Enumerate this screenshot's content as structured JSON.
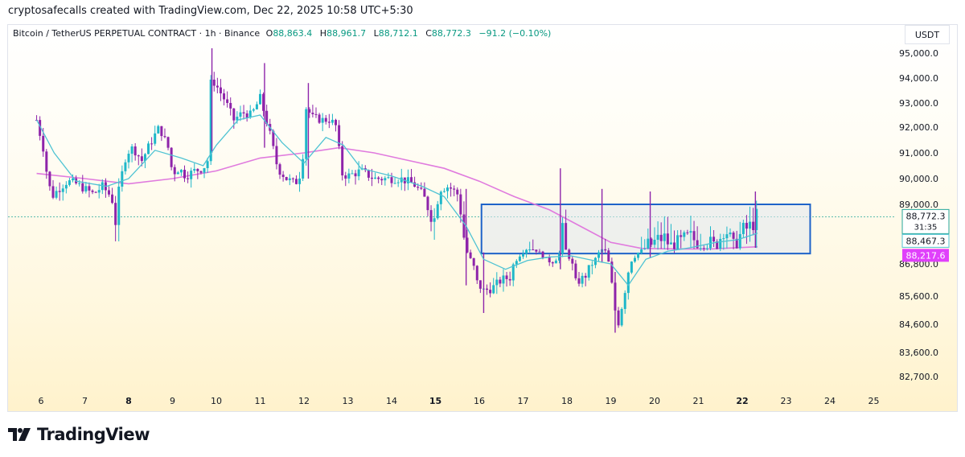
{
  "attribution": "cryptosafecalls created with TradingView.com, Dec 22, 2025 10:58 UTC+5:30",
  "symbol": {
    "name": "Bitcoin / TetherUS PERPETUAL CONTRACT · 1h · Binance",
    "open_label": "O",
    "open": "88,863.4",
    "high_label": "H",
    "high": "88,961.7",
    "low_label": "L",
    "low": "88,712.1",
    "close_label": "C",
    "close": "88,772.3",
    "change": "−91.2 (−0.10%)"
  },
  "currency": "USDT",
  "brand": "TradingView",
  "colors": {
    "up": "#1fb7c9",
    "down": "#8e24aa",
    "ema_short": "#4fc3d3",
    "ema_long": "#e07bde",
    "box_border": "#1e63c9",
    "price_tag": "#26a69a",
    "ema_tag": "#e040fb"
  },
  "price_tags": {
    "last": "88,772.3",
    "countdown": "31:35",
    "ema_short": "88,467.3",
    "ema_long": "88,217.6"
  },
  "chart_data": {
    "type": "candlestick",
    "y_axis_labels": [
      "95,000.0",
      "94,000.0",
      "93,000.0",
      "92,000.0",
      "91,000.0",
      "90,000.0",
      "89,000.0",
      "86,800.0",
      "85,600.0",
      "84,600.0",
      "83,600.0",
      "82,700.0"
    ],
    "x_axis_labels": [
      "6",
      "7",
      "8",
      "9",
      "10",
      "11",
      "12",
      "13",
      "14",
      "15",
      "16",
      "17",
      "18",
      "19",
      "20",
      "21",
      "22",
      "23",
      "24",
      "25"
    ],
    "bold_x_labels": [
      "8",
      "15",
      "22"
    ],
    "ylim": [
      82200,
      95600
    ],
    "close_path": [
      [
        5.9,
        92.3
      ],
      [
        6.05,
        91.2
      ],
      [
        6.15,
        90.0
      ],
      [
        6.25,
        89.3
      ],
      [
        6.4,
        89.6
      ],
      [
        6.6,
        89.9
      ],
      [
        6.8,
        89.8
      ],
      [
        7.0,
        89.6
      ],
      [
        7.2,
        89.4
      ],
      [
        7.4,
        89.7
      ],
      [
        7.6,
        89.3
      ],
      [
        7.7,
        88.7
      ],
      [
        7.8,
        89.8
      ],
      [
        7.95,
        91.0
      ],
      [
        8.1,
        91.2
      ],
      [
        8.3,
        90.7
      ],
      [
        8.5,
        91.4
      ],
      [
        8.7,
        92.0
      ],
      [
        8.9,
        91.2
      ],
      [
        9.0,
        90.2
      ],
      [
        9.15,
        90.4
      ],
      [
        9.3,
        90.1
      ],
      [
        9.5,
        90.3
      ],
      [
        9.7,
        90.4
      ],
      [
        9.8,
        90.7
      ],
      [
        9.88,
        94.0
      ],
      [
        10.0,
        93.7
      ],
      [
        10.2,
        93.1
      ],
      [
        10.4,
        92.3
      ],
      [
        10.6,
        92.6
      ],
      [
        10.8,
        92.5
      ],
      [
        11.0,
        93.2
      ],
      [
        11.2,
        91.9
      ],
      [
        11.4,
        90.4
      ],
      [
        11.6,
        90.0
      ],
      [
        11.8,
        89.8
      ],
      [
        11.95,
        90.3
      ],
      [
        12.05,
        92.8
      ],
      [
        12.2,
        92.4
      ],
      [
        12.4,
        92.3
      ],
      [
        12.6,
        92.3
      ],
      [
        12.75,
        92.0
      ],
      [
        12.85,
        90.2
      ],
      [
        13.0,
        90.1
      ],
      [
        13.3,
        90.3
      ],
      [
        13.6,
        90.0
      ],
      [
        13.9,
        90.0
      ],
      [
        14.2,
        90.0
      ],
      [
        14.5,
        89.8
      ],
      [
        14.7,
        89.4
      ],
      [
        14.85,
        88.9
      ],
      [
        15.0,
        88.7
      ],
      [
        15.1,
        89.6
      ],
      [
        15.3,
        89.7
      ],
      [
        15.5,
        89.4
      ],
      [
        15.65,
        88.4
      ],
      [
        15.8,
        87.2
      ],
      [
        15.95,
        86.1
      ],
      [
        16.1,
        85.8
      ],
      [
        16.3,
        85.9
      ],
      [
        16.5,
        86.2
      ],
      [
        16.7,
        86.3
      ],
      [
        16.9,
        87.5
      ],
      [
        17.1,
        88.2
      ],
      [
        17.3,
        88.0
      ],
      [
        17.5,
        87.3
      ],
      [
        17.65,
        86.9
      ],
      [
        17.8,
        87.4
      ],
      [
        17.9,
        88.5
      ],
      [
        18.0,
        87.8
      ],
      [
        18.2,
        86.1
      ],
      [
        18.4,
        86.3
      ],
      [
        18.6,
        86.9
      ],
      [
        18.75,
        87.9
      ],
      [
        18.85,
        88.2
      ],
      [
        19.0,
        86.3
      ],
      [
        19.15,
        84.5
      ],
      [
        19.3,
        85.6
      ],
      [
        19.45,
        87.0
      ],
      [
        19.6,
        87.7
      ],
      [
        19.8,
        88.2
      ],
      [
        20.0,
        88.3
      ],
      [
        20.2,
        88.4
      ],
      [
        20.4,
        88.2
      ],
      [
        20.6,
        88.3
      ],
      [
        20.8,
        88.4
      ],
      [
        21.0,
        88.3
      ],
      [
        21.2,
        88.3
      ],
      [
        21.4,
        88.2
      ],
      [
        21.6,
        88.6
      ],
      [
        21.8,
        88.2
      ],
      [
        22.0,
        88.5
      ],
      [
        22.2,
        88.6
      ],
      [
        22.35,
        88.8
      ]
    ],
    "ema_short": [
      [
        5.9,
        92.3
      ],
      [
        6.3,
        91.0
      ],
      [
        6.8,
        89.9
      ],
      [
        7.5,
        89.7
      ],
      [
        8.0,
        90.0
      ],
      [
        8.6,
        91.1
      ],
      [
        9.2,
        90.8
      ],
      [
        9.7,
        90.5
      ],
      [
        10.0,
        91.3
      ],
      [
        10.5,
        92.3
      ],
      [
        11.0,
        92.5
      ],
      [
        11.5,
        91.4
      ],
      [
        12.0,
        90.6
      ],
      [
        12.5,
        91.6
      ],
      [
        12.9,
        91.3
      ],
      [
        13.3,
        90.4
      ],
      [
        14.0,
        90.1
      ],
      [
        14.7,
        89.7
      ],
      [
        15.2,
        89.3
      ],
      [
        15.7,
        88.6
      ],
      [
        16.1,
        87.2
      ],
      [
        16.6,
        86.6
      ],
      [
        17.1,
        87.1
      ],
      [
        17.6,
        87.4
      ],
      [
        18.1,
        87.5
      ],
      [
        18.6,
        87.1
      ],
      [
        19.0,
        86.8
      ],
      [
        19.4,
        86.0
      ],
      [
        19.8,
        87.2
      ],
      [
        20.3,
        87.9
      ],
      [
        20.8,
        88.2
      ],
      [
        21.4,
        88.3
      ],
      [
        21.9,
        88.35
      ],
      [
        22.35,
        88.47
      ]
    ],
    "ema_long": [
      [
        5.9,
        90.2
      ],
      [
        7.0,
        90.0
      ],
      [
        8.0,
        89.8
      ],
      [
        9.0,
        90.0
      ],
      [
        10.0,
        90.3
      ],
      [
        11.0,
        90.8
      ],
      [
        12.0,
        91.0
      ],
      [
        12.8,
        91.2
      ],
      [
        13.6,
        91.0
      ],
      [
        14.4,
        90.7
      ],
      [
        15.2,
        90.4
      ],
      [
        16.0,
        89.9
      ],
      [
        16.8,
        89.3
      ],
      [
        17.6,
        88.9
      ],
      [
        18.3,
        88.6
      ],
      [
        19.0,
        88.3
      ],
      [
        19.7,
        88.15
      ],
      [
        20.5,
        88.1
      ],
      [
        21.3,
        88.1
      ],
      [
        22.35,
        88.22
      ]
    ],
    "box": {
      "x0": 16.05,
      "x1": 23.55,
      "y_top": 89.0,
      "y_bottom": 87.7
    }
  }
}
